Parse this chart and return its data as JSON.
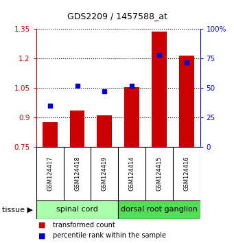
{
  "title": "GDS2209 / 1457588_at",
  "samples": [
    "GSM124417",
    "GSM124418",
    "GSM124419",
    "GSM124414",
    "GSM124415",
    "GSM124416"
  ],
  "transformed_count": [
    0.875,
    0.935,
    0.91,
    1.055,
    1.338,
    1.215
  ],
  "percentile_rank": [
    35,
    52,
    47,
    52,
    78,
    72
  ],
  "ylim": [
    0.75,
    1.35
  ],
  "yticks": [
    0.75,
    0.9,
    1.05,
    1.2,
    1.35
  ],
  "ytick_labels": [
    "0.75",
    "0.9",
    "1.05",
    "1.2",
    "1.35"
  ],
  "y2lim": [
    0,
    100
  ],
  "y2ticks": [
    0,
    25,
    50,
    75,
    100
  ],
  "y2tick_labels": [
    "0",
    "25",
    "50",
    "75",
    "100%"
  ],
  "bar_color": "#cc0000",
  "dot_color": "#0000cc",
  "bar_bottom": 0.75,
  "groups": [
    {
      "label": "spinal cord",
      "start": 0,
      "end": 3,
      "color": "#aaffaa"
    },
    {
      "label": "dorsal root ganglion",
      "start": 3,
      "end": 6,
      "color": "#55dd55"
    }
  ],
  "tissue_label": "tissue",
  "legend_bar_label": "transformed count",
  "legend_dot_label": "percentile rank within the sample",
  "bar_axis_color": "#cc0000",
  "pct_axis_color": "#0000cc",
  "grid_style": "dotted",
  "background_color": "#ffffff",
  "sample_bg_color": "#cccccc",
  "title_fontsize": 9,
  "tick_fontsize": 7.5,
  "sample_fontsize": 6,
  "tissue_fontsize": 8,
  "legend_fontsize": 7
}
